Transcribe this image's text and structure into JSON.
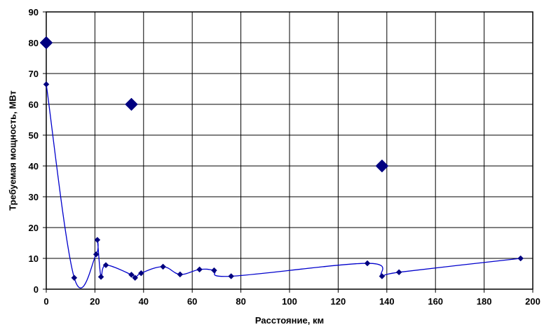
{
  "chart_data": {
    "type": "scatter",
    "xlabel": "Расстояние, км",
    "ylabel": "Требуемая мощность, МВт",
    "xlim": [
      0,
      200
    ],
    "ylim": [
      0,
      90
    ],
    "x_ticks": [
      "0",
      "20",
      "40",
      "60",
      "80",
      "100",
      "120",
      "140",
      "160",
      "180",
      "200"
    ],
    "y_ticks": [
      "0",
      "10",
      "20",
      "30",
      "40",
      "50",
      "60",
      "70",
      "80",
      "90"
    ],
    "grid": true,
    "legend": "none",
    "colors": {
      "marker": "#000080",
      "line": "#0000cc",
      "grid": "#000000"
    },
    "series": [
      {
        "style": "smooth-line-with-small-diamonds",
        "points": [
          [
            0,
            66.5
          ],
          [
            11.5,
            3.7
          ],
          [
            20.5,
            11.3
          ],
          [
            21,
            16
          ],
          [
            22.5,
            4
          ],
          [
            24.5,
            7.8
          ],
          [
            35,
            4.7
          ],
          [
            36.5,
            3.7
          ],
          [
            39,
            5.2
          ],
          [
            48,
            7.3
          ],
          [
            55,
            4.8
          ],
          [
            63,
            6.4
          ],
          [
            69,
            6.1
          ],
          [
            76,
            4.2
          ],
          [
            132,
            8.4
          ],
          [
            138,
            4.2
          ],
          [
            145,
            5.5
          ],
          [
            195,
            10
          ]
        ]
      },
      {
        "style": "large-diamonds",
        "points": [
          [
            0,
            80
          ],
          [
            35,
            60
          ],
          [
            138,
            40
          ]
        ]
      }
    ]
  }
}
